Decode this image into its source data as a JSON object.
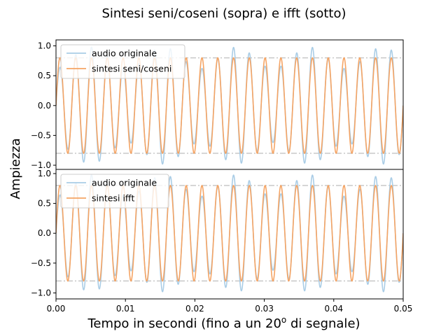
{
  "figure": {
    "suptitle": "Sintesi seni/coseni (sopra) e ifft (sotto)",
    "ylabel": "Ampiezza",
    "xlabel_main": "Tempo in secondi (fino a un 20",
    "xlabel_sup": "o",
    "xlabel_tail": " di segnale)"
  },
  "chart_data": [
    {
      "type": "line",
      "position": "top",
      "xlim": [
        0,
        0.05
      ],
      "ylim": [
        -1.07,
        1.1
      ],
      "yticks": [
        1.0,
        0.5,
        0.0,
        -0.5,
        -1.0
      ],
      "ytick_labels": [
        "1.0",
        "0.5",
        "0.0",
        "−0.5",
        "−1.0"
      ],
      "xticks": [],
      "legend_position": "upper-left",
      "reference_lines": [
        0.8,
        -0.8
      ],
      "series": [
        {
          "name": "audio originale",
          "color": "#aacde6",
          "freq_hz": 440,
          "amp": 0.8,
          "beat_amp": 0.18,
          "beat_period": 0.0105,
          "beat_phase": 0.0155
        },
        {
          "name": "sintesi seni/coseni",
          "color": "#f5a464",
          "freq_hz": 440,
          "amp": 0.8
        }
      ]
    },
    {
      "type": "line",
      "position": "bottom",
      "xlim": [
        0,
        0.05
      ],
      "ylim": [
        -1.1,
        1.07
      ],
      "yticks": [
        1.0,
        0.5,
        0.0,
        -0.5,
        -1.0
      ],
      "ytick_labels": [
        "1.0",
        "0.5",
        "0.0",
        "−0.5",
        "−1.0"
      ],
      "xticks": [
        0.0,
        0.01,
        0.02,
        0.03,
        0.04,
        0.05
      ],
      "xtick_labels": [
        "0.00",
        "0.01",
        "0.02",
        "0.03",
        "0.04",
        "0.05"
      ],
      "legend_position": "upper-left",
      "reference_lines": [
        0.8,
        -0.8
      ],
      "series": [
        {
          "name": "audio originale",
          "color": "#aacde6",
          "freq_hz": 440,
          "amp": 0.8,
          "beat_amp": 0.18,
          "beat_period": 0.0105,
          "beat_phase": 0.0155
        },
        {
          "name": "sintesi ifft",
          "color": "#f5a464",
          "freq_hz": 440,
          "amp": 0.8
        }
      ]
    }
  ],
  "colors": {
    "reference_line": "#c8c8c8",
    "axes": "#000000",
    "legend_border": "#cccccc"
  }
}
